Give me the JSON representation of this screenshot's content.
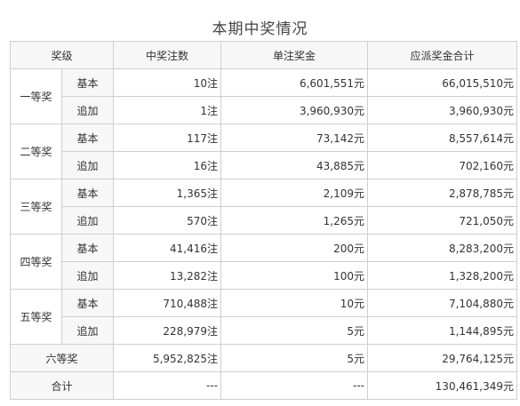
{
  "title": "本期中奖情况",
  "headers": {
    "level": "奖级",
    "count": "中奖注数",
    "single": "单注奖金",
    "total": "应派奖金合计"
  },
  "sub_labels": {
    "basic": "基本",
    "extra": "追加"
  },
  "prizes": [
    {
      "name": "一等奖",
      "basic": {
        "count": "10注",
        "single": "6,601,551元",
        "total": "66,015,510元"
      },
      "extra": {
        "count": "1注",
        "single": "3,960,930元",
        "total": "3,960,930元"
      }
    },
    {
      "name": "二等奖",
      "basic": {
        "count": "117注",
        "single": "73,142元",
        "total": "8,557,614元"
      },
      "extra": {
        "count": "16注",
        "single": "43,885元",
        "total": "702,160元"
      }
    },
    {
      "name": "三等奖",
      "basic": {
        "count": "1,365注",
        "single": "2,109元",
        "total": "2,878,785元"
      },
      "extra": {
        "count": "570注",
        "single": "1,265元",
        "total": "721,050元"
      }
    },
    {
      "name": "四等奖",
      "basic": {
        "count": "41,416注",
        "single": "200元",
        "total": "8,283,200元"
      },
      "extra": {
        "count": "13,282注",
        "single": "100元",
        "total": "1,328,200元"
      }
    },
    {
      "name": "五等奖",
      "basic": {
        "count": "710,488注",
        "single": "10元",
        "total": "7,104,880元"
      },
      "extra": {
        "count": "228,979注",
        "single": "5元",
        "total": "1,144,895元"
      }
    }
  ],
  "sixth": {
    "name": "六等奖",
    "count": "5,952,825注",
    "single": "5元",
    "total": "29,764,125元"
  },
  "sum": {
    "name": "合计",
    "count": "---",
    "single": "---",
    "total": "130,461,349元"
  }
}
